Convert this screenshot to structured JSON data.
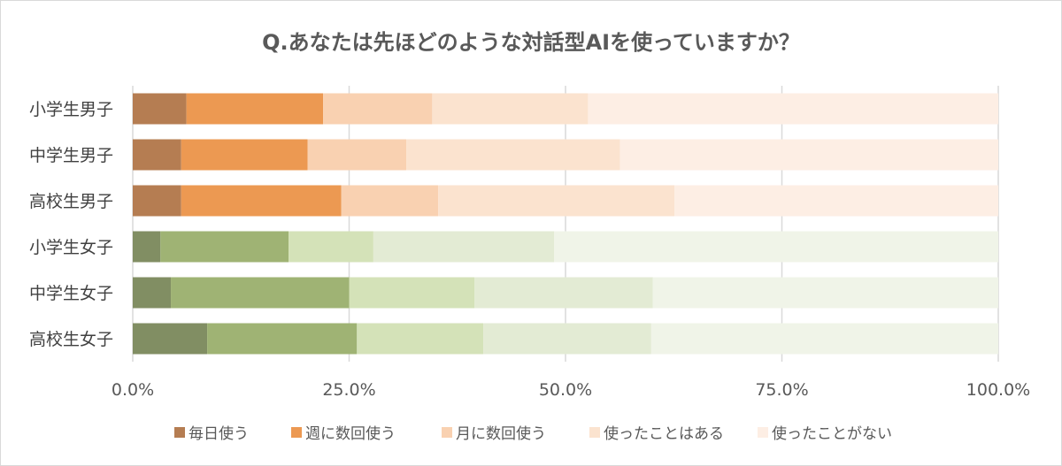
{
  "chart_data": {
    "type": "bar",
    "orientation": "horizontal",
    "stacked": "percent",
    "title": "Q.あなたは先ほどのような対話型AIを使っていますか？",
    "categories": [
      "小学生男子",
      "中学生男子",
      "高校生男子",
      "小学生女子",
      "中学生女子",
      "高校生女子"
    ],
    "series": [
      {
        "name": "毎日使う",
        "values": [
          6.2,
          5.6,
          5.6,
          3.2,
          4.4,
          8.6
        ]
      },
      {
        "name": "週に数回使う",
        "values": [
          15.8,
          14.6,
          18.5,
          14.8,
          20.6,
          17.3
        ]
      },
      {
        "name": "月に数回使う",
        "values": [
          12.6,
          11.4,
          11.2,
          9.8,
          14.5,
          14.6
        ]
      },
      {
        "name": "使ったことはある",
        "values": [
          18.0,
          24.7,
          27.3,
          20.9,
          20.6,
          19.4
        ]
      },
      {
        "name": "使ったことがない",
        "values": [
          47.4,
          43.7,
          37.4,
          51.3,
          39.9,
          40.1
        ]
      }
    ],
    "xlim": [
      0,
      100
    ],
    "xticks": [
      "0.0%",
      "25.0%",
      "50.0%",
      "75.0%",
      "100.0%"
    ],
    "grid": true,
    "legend": "bottom",
    "colors": {
      "boys": [
        "#b57d52",
        "#ec9952",
        "#f9d1b1",
        "#fbe3cf",
        "#fdeee4"
      ],
      "girls": [
        "#818e63",
        "#9fb374",
        "#d4e2b8",
        "#e3ebd4",
        "#f0f4e8"
      ],
      "gridline": "#d9d9d9"
    }
  }
}
